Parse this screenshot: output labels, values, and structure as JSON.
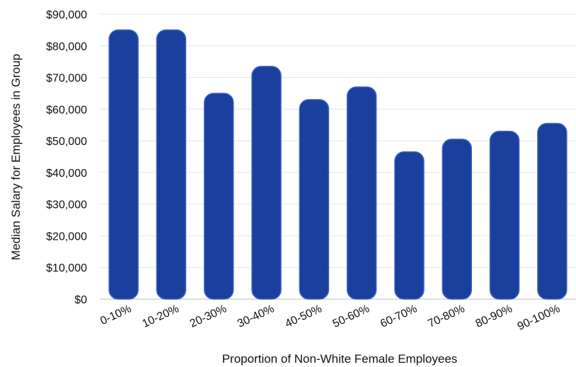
{
  "chart_data": {
    "type": "bar",
    "title": "",
    "xlabel": "Proportion of Non-White Female Employees",
    "ylabel": "Median Salary for Employees in Group",
    "categories": [
      "0-10%",
      "10-20%",
      "20-30%",
      "30-40%",
      "40-50%",
      "50-60%",
      "60-70%",
      "70-80%",
      "80-90%",
      "90-100%"
    ],
    "values": [
      85000,
      85000,
      65000,
      73500,
      63000,
      67000,
      46500,
      50500,
      53000,
      55500
    ],
    "ylim": [
      0,
      90000
    ],
    "yticks": [
      0,
      10000,
      20000,
      30000,
      40000,
      50000,
      60000,
      70000,
      80000,
      90000
    ],
    "ytick_labels": [
      "$0",
      "$10,000",
      "$20,000",
      "$30,000",
      "$40,000",
      "$50,000",
      "$60,000",
      "$70,000",
      "$80,000",
      "$90,000"
    ],
    "grid": true,
    "legend": "none",
    "bar_color": "#1a3f9c",
    "bar_edge_color": "#3f64c8"
  }
}
